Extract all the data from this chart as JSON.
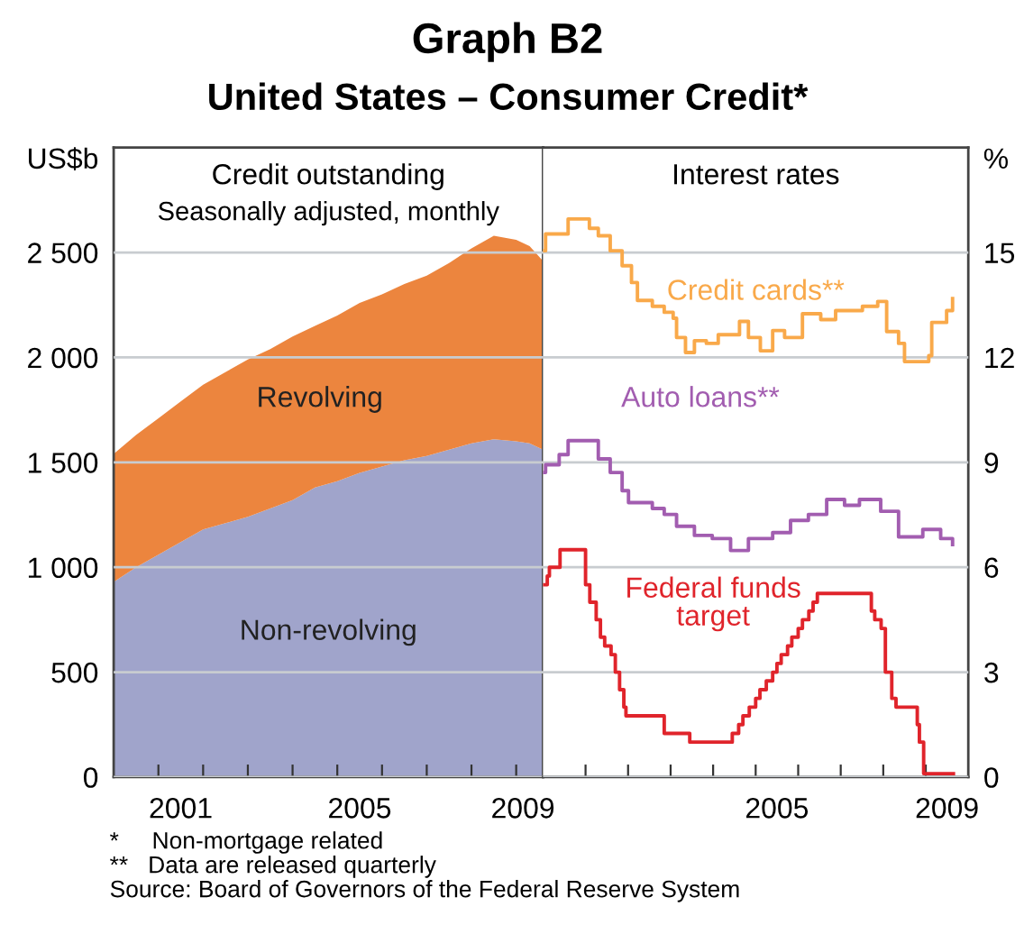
{
  "chart_data": [
    {
      "type": "area",
      "stacked": true,
      "title": "Graph B2",
      "subtitle": "United States – Consumer Credit*",
      "ylabel": "US$b",
      "annotations": [
        "Credit outstanding",
        "Seasonally adjusted, monthly",
        "*     Non-mortgage related",
        "**   Data are released quarterly",
        "Source: Board of Governors of the Federal Reserve System"
      ],
      "x": [
        2000.0,
        2000.5,
        2001.0,
        2001.5,
        2002.0,
        2002.5,
        2003.0,
        2003.5,
        2004.0,
        2004.5,
        2005.0,
        2005.5,
        2006.0,
        2006.5,
        2007.0,
        2007.5,
        2008.0,
        2008.5,
        2009.0,
        2009.3,
        2009.6
      ],
      "series": [
        {
          "name": "Non-revolving",
          "color": "#a0a4cb",
          "values": [
            930,
            1000,
            1060,
            1120,
            1180,
            1210,
            1240,
            1280,
            1320,
            1380,
            1410,
            1450,
            1480,
            1510,
            1530,
            1560,
            1590,
            1610,
            1600,
            1590,
            1560
          ]
        },
        {
          "name": "Revolving",
          "color": "#ec853e",
          "values": [
            610,
            630,
            650,
            670,
            690,
            720,
            750,
            760,
            780,
            770,
            790,
            810,
            820,
            840,
            860,
            890,
            930,
            970,
            960,
            940,
            900
          ]
        }
      ],
      "xlim": [
        2000,
        2009.6
      ],
      "ylim": [
        0,
        3000
      ],
      "xticks": [
        {
          "value": 2001,
          "label": null
        },
        {
          "value": 2002,
          "label": null
        },
        {
          "value": 2003,
          "label": null
        },
        {
          "value": 2004,
          "label": null
        },
        {
          "value": 2005,
          "label": null
        },
        {
          "value": 2006,
          "label": null
        },
        {
          "value": 2007,
          "label": null
        },
        {
          "value": 2008,
          "label": null
        },
        {
          "value": 2009,
          "label": null
        },
        {
          "value": 2001.5,
          "label": "2001"
        },
        {
          "value": 2005.5,
          "label": "2005"
        },
        {
          "value": 2009.15,
          "label": "2009"
        }
      ],
      "yticks": [
        0,
        500,
        {
          "value": 1000,
          "label": "1 000"
        },
        {
          "value": 1500,
          "label": "1 500"
        },
        {
          "value": 2000,
          "label": "2 000"
        },
        {
          "value": 2500,
          "label": "2 500"
        }
      ],
      "grid": "y"
    },
    {
      "type": "step",
      "ylabel": "%",
      "annotations": [
        "Interest rates"
      ],
      "series": [
        {
          "name": "Credit cards**",
          "color": "#f9a94a",
          "x": [
            2000.0,
            2000.06,
            2000.59,
            2001.09,
            2001.3,
            2001.58,
            2001.86,
            2002.08,
            2002.22,
            2002.57,
            2002.85,
            2003.06,
            2003.14,
            2003.35,
            2003.56,
            2003.84,
            2004.12,
            2004.62,
            2004.83,
            2005.11,
            2005.4,
            2005.68,
            2006.1,
            2006.53,
            2006.88,
            2007.51,
            2007.87,
            2008.08,
            2008.36,
            2008.5,
            2009.07,
            2009.14,
            2009.49,
            2009.63
          ],
          "values": [
            15.05,
            15.53,
            15.96,
            15.69,
            15.48,
            15.05,
            14.62,
            14.14,
            13.63,
            13.46,
            13.29,
            13.12,
            12.57,
            12.14,
            12.48,
            12.4,
            12.65,
            13.03,
            12.57,
            12.19,
            12.77,
            12.57,
            13.25,
            13.08,
            13.34,
            13.46,
            13.6,
            12.74,
            12.4,
            11.88,
            12.05,
            13.0,
            13.34,
            13.68
          ]
        },
        {
          "name": "Auto loans**",
          "color": "#a25db0",
          "x": [
            2000.0,
            2000.06,
            2000.38,
            2000.59,
            2001.09,
            2001.3,
            2001.58,
            2001.86,
            2002.01,
            2002.57,
            2002.85,
            2003.14,
            2003.56,
            2003.98,
            2004.41,
            2004.83,
            2005.4,
            2005.82,
            2006.24,
            2006.67,
            2007.09,
            2007.44,
            2007.94,
            2008.36,
            2008.93,
            2009.35,
            2009.63
          ],
          "values": [
            8.71,
            8.93,
            9.22,
            9.62,
            9.62,
            9.1,
            8.71,
            8.19,
            7.85,
            7.68,
            7.51,
            7.17,
            6.91,
            6.82,
            6.48,
            6.82,
            6.99,
            7.34,
            7.51,
            7.94,
            7.77,
            7.94,
            7.6,
            6.87,
            7.08,
            6.82,
            6.65
          ]
        },
        {
          "name": "Federal funds\ntarget",
          "color": "#e0242b",
          "x": [
            2000.0,
            2000.1,
            2000.15,
            2000.4,
            2001.0,
            2001.1,
            2001.25,
            2001.35,
            2001.45,
            2001.6,
            2001.7,
            2001.8,
            2001.9,
            2001.95,
            2002.85,
            2003.45,
            2004.45,
            2004.6,
            2004.7,
            2004.85,
            2005.0,
            2005.1,
            2005.25,
            2005.4,
            2005.5,
            2005.6,
            2005.75,
            2005.85,
            2006.0,
            2006.1,
            2006.25,
            2006.35,
            2006.45,
            2007.72,
            2007.8,
            2007.95,
            2008.05,
            2008.2,
            2008.3,
            2008.8,
            2008.85,
            2008.95,
            2009.65
          ],
          "values": [
            5.5,
            5.75,
            6.0,
            6.5,
            5.5,
            5.0,
            4.5,
            4.0,
            3.75,
            3.5,
            3.0,
            2.5,
            2.0,
            1.75,
            1.25,
            1.0,
            1.25,
            1.5,
            1.75,
            2.0,
            2.25,
            2.5,
            2.75,
            3.0,
            3.25,
            3.5,
            3.75,
            4.0,
            4.25,
            4.5,
            4.75,
            5.0,
            5.25,
            4.75,
            4.5,
            4.25,
            3.0,
            2.25,
            2.0,
            1.5,
            1.0,
            0.1,
            0.1
          ]
        }
      ],
      "xlim": [
        2000,
        2010
      ],
      "ylim": [
        0,
        18
      ],
      "xticks": [
        {
          "value": 2001,
          "label": null
        },
        {
          "value": 2002,
          "label": null
        },
        {
          "value": 2003,
          "label": null
        },
        {
          "value": 2004,
          "label": null
        },
        {
          "value": 2005,
          "label": null
        },
        {
          "value": 2006,
          "label": null
        },
        {
          "value": 2007,
          "label": null
        },
        {
          "value": 2008,
          "label": null
        },
        {
          "value": 2009,
          "label": null
        },
        {
          "value": 2005.5,
          "label": "2005"
        },
        {
          "value": 2009.5,
          "label": "2009"
        }
      ],
      "yticks": [
        0,
        3,
        6,
        9,
        12,
        15
      ],
      "grid": "y"
    }
  ]
}
